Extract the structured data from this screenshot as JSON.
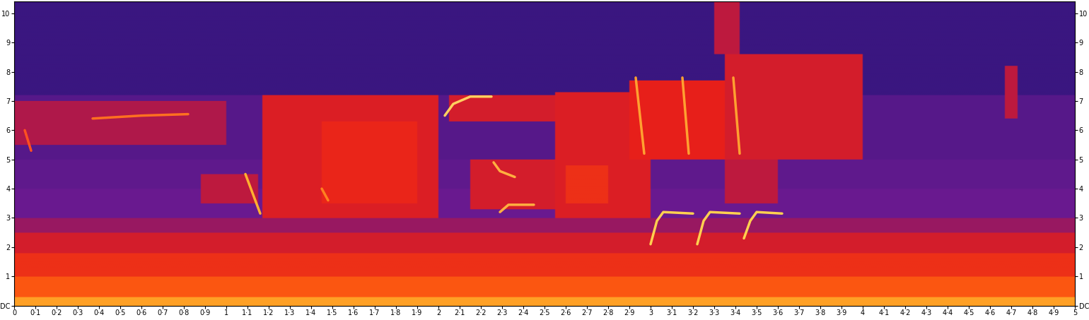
{
  "chart_data": {
    "type": "spectrogram",
    "xlim": [
      0,
      5
    ],
    "ylim": [
      0,
      10.4
    ],
    "xticks": [
      {
        "value": 0,
        "label": "0"
      },
      {
        "value": 0.1,
        "label": "0·1"
      },
      {
        "value": 0.2,
        "label": "0·2"
      },
      {
        "value": 0.3,
        "label": "0·3"
      },
      {
        "value": 0.4,
        "label": "0·4"
      },
      {
        "value": 0.5,
        "label": "0·5"
      },
      {
        "value": 0.6,
        "label": "0·6"
      },
      {
        "value": 0.7,
        "label": "0·7"
      },
      {
        "value": 0.8,
        "label": "0·8"
      },
      {
        "value": 0.9,
        "label": "0·9"
      },
      {
        "value": 1,
        "label": "1"
      },
      {
        "value": 1.1,
        "label": "1·1"
      },
      {
        "value": 1.2,
        "label": "1·2"
      },
      {
        "value": 1.3,
        "label": "1·3"
      },
      {
        "value": 1.4,
        "label": "1·4"
      },
      {
        "value": 1.5,
        "label": "1·5"
      },
      {
        "value": 1.6,
        "label": "1·6"
      },
      {
        "value": 1.7,
        "label": "1·7"
      },
      {
        "value": 1.8,
        "label": "1·8"
      },
      {
        "value": 1.9,
        "label": "1·9"
      },
      {
        "value": 2,
        "label": "2"
      },
      {
        "value": 2.1,
        "label": "2·1"
      },
      {
        "value": 2.2,
        "label": "2·2"
      },
      {
        "value": 2.3,
        "label": "2·3"
      },
      {
        "value": 2.4,
        "label": "2·4"
      },
      {
        "value": 2.5,
        "label": "2·5"
      },
      {
        "value": 2.6,
        "label": "2·6"
      },
      {
        "value": 2.7,
        "label": "2·7"
      },
      {
        "value": 2.8,
        "label": "2·8"
      },
      {
        "value": 2.9,
        "label": "2·9"
      },
      {
        "value": 3,
        "label": "3"
      },
      {
        "value": 3.1,
        "label": "3·1"
      },
      {
        "value": 3.2,
        "label": "3·2"
      },
      {
        "value": 3.3,
        "label": "3·3"
      },
      {
        "value": 3.4,
        "label": "3·4"
      },
      {
        "value": 3.5,
        "label": "3·5"
      },
      {
        "value": 3.6,
        "label": "3·6"
      },
      {
        "value": 3.7,
        "label": "3·7"
      },
      {
        "value": 3.8,
        "label": "3·8"
      },
      {
        "value": 3.9,
        "label": "3·9"
      },
      {
        "value": 4,
        "label": "4"
      },
      {
        "value": 4.1,
        "label": "4·1"
      },
      {
        "value": 4.2,
        "label": "4·2"
      },
      {
        "value": 4.3,
        "label": "4·3"
      },
      {
        "value": 4.4,
        "label": "4·4"
      },
      {
        "value": 4.5,
        "label": "4·5"
      },
      {
        "value": 4.6,
        "label": "4·6"
      },
      {
        "value": 4.7,
        "label": "4·7"
      },
      {
        "value": 4.8,
        "label": "4·8"
      },
      {
        "value": 4.9,
        "label": "4·9"
      },
      {
        "value": 5,
        "label": "5"
      }
    ],
    "yticks": [
      {
        "value": 0,
        "label": "DC"
      },
      1,
      2,
      3,
      4,
      5,
      6,
      7,
      8,
      9,
      10
    ],
    "clim": [
      0,
      1
    ],
    "bands": {
      "edges": [
        0,
        0.3,
        1,
        1.8,
        2.5,
        3,
        4,
        5,
        7.2,
        10.4
      ],
      "values": [
        0.85,
        0.72,
        0.6,
        0.5,
        0.38,
        0.3,
        0.28,
        0.26,
        0.2
      ]
    },
    "regions": [
      {
        "x": [
          0,
          1.0
        ],
        "y": [
          5.5,
          7.0
        ],
        "value": 0.42
      },
      {
        "x": [
          0.88,
          1.15
        ],
        "y": [
          3.5,
          4.5
        ],
        "value": 0.45
      },
      {
        "x": [
          1.17,
          2.0
        ],
        "y": [
          3.0,
          7.2
        ],
        "value": 0.52
      },
      {
        "x": [
          1.45,
          1.9
        ],
        "y": [
          3.5,
          6.3
        ],
        "value": 0.57
      },
      {
        "x": [
          2.05,
          2.55
        ],
        "y": [
          6.3,
          7.2
        ],
        "value": 0.5
      },
      {
        "x": [
          2.15,
          2.55
        ],
        "y": [
          3.3,
          5.0
        ],
        "value": 0.5
      },
      {
        "x": [
          2.55,
          3.0
        ],
        "y": [
          3.0,
          7.3
        ],
        "value": 0.52
      },
      {
        "x": [
          2.6,
          2.8
        ],
        "y": [
          3.5,
          4.8
        ],
        "value": 0.6
      },
      {
        "x": [
          2.9,
          3.35
        ],
        "y": [
          5.0,
          7.7
        ],
        "value": 0.55
      },
      {
        "x": [
          3.35,
          4.0
        ],
        "y": [
          5.0,
          8.6
        ],
        "value": 0.5
      },
      {
        "x": [
          3.3,
          3.42
        ],
        "y": [
          8.6,
          10.4
        ],
        "value": 0.45
      },
      {
        "x": [
          3.35,
          3.6
        ],
        "y": [
          3.5,
          5.0
        ],
        "value": 0.45
      },
      {
        "x": [
          4.67,
          4.73
        ],
        "y": [
          6.4,
          8.2
        ],
        "value": 0.45
      }
    ],
    "traces": [
      {
        "x": [
          0.37,
          0.6,
          0.82
        ],
        "values": [
          6.4,
          6.5,
          6.55
        ],
        "color": "#ff7020"
      },
      {
        "x": [
          0.05,
          0.08
        ],
        "values": [
          6.0,
          5.3
        ],
        "color": "#ff5020"
      },
      {
        "x": [
          1.09,
          1.16
        ],
        "values": [
          4.5,
          3.15
        ],
        "color": "#ffb030"
      },
      {
        "x": [
          1.45,
          1.48
        ],
        "values": [
          4.0,
          3.6
        ],
        "color": "#ff8020"
      },
      {
        "x": [
          2.03,
          2.07,
          2.15,
          2.25
        ],
        "values": [
          6.5,
          6.9,
          7.15,
          7.15
        ],
        "color": "#ffd060"
      },
      {
        "x": [
          2.26,
          2.29,
          2.36
        ],
        "values": [
          4.9,
          4.6,
          4.4
        ],
        "color": "#ffb040"
      },
      {
        "x": [
          2.29,
          2.33,
          2.45
        ],
        "values": [
          3.2,
          3.45,
          3.45
        ],
        "color": "#ffb040"
      },
      {
        "x": [
          2.93,
          2.97
        ],
        "values": [
          7.8,
          5.2
        ],
        "color": "#ffa030"
      },
      {
        "x": [
          3.15,
          3.18
        ],
        "values": [
          7.8,
          5.2
        ],
        "color": "#ffa030"
      },
      {
        "x": [
          3.39,
          3.42
        ],
        "values": [
          7.8,
          5.2
        ],
        "color": "#ffa030"
      },
      {
        "x": [
          3.0,
          3.03,
          3.06,
          3.2
        ],
        "values": [
          2.1,
          2.9,
          3.2,
          3.15
        ],
        "color": "#ffd050"
      },
      {
        "x": [
          3.22,
          3.25,
          3.28,
          3.42
        ],
        "values": [
          2.1,
          2.9,
          3.2,
          3.15
        ],
        "color": "#ffd050"
      },
      {
        "x": [
          3.44,
          3.47,
          3.5,
          3.62
        ],
        "values": [
          2.3,
          2.9,
          3.2,
          3.15
        ],
        "color": "#ffd050"
      }
    ]
  }
}
